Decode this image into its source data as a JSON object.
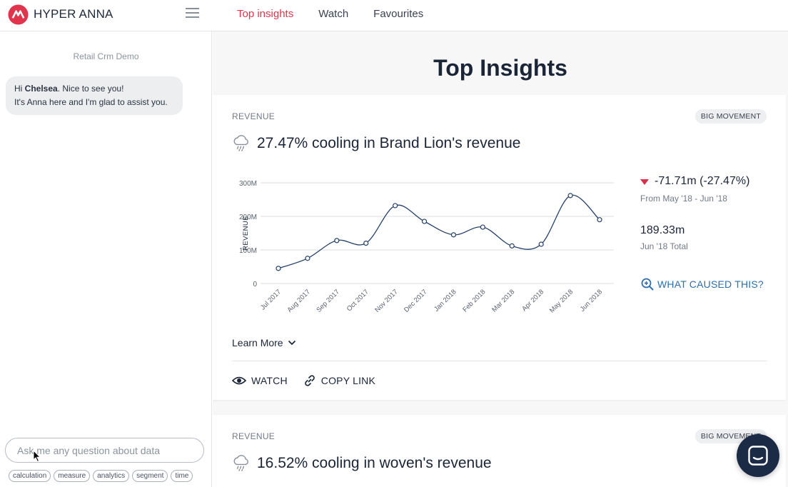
{
  "app": {
    "brand": "HYPER ANNA",
    "accent": "#e0334c",
    "navy": "#1b2538"
  },
  "nav": [
    {
      "label": "Top insights",
      "active": true
    },
    {
      "label": "Watch",
      "active": false
    },
    {
      "label": "Favourites",
      "active": false
    }
  ],
  "sidebar": {
    "dataset": "Retail Crm Demo",
    "greeting_prefix": "Hi ",
    "greeting_name": "Chelsea",
    "greeting_suffix": ". Nice to see you!",
    "greeting_line2": "It's Anna here and I'm glad to assist you.",
    "ask_placeholder": "Ask me any question about data",
    "chips": [
      "calculation",
      "measure",
      "analytics",
      "segment",
      "time"
    ]
  },
  "main": {
    "title": "Top Insights",
    "cards": [
      {
        "category": "REVENUE",
        "badge": "BIG MOVEMENT",
        "headline": "27.47% cooling in Brand Lion's revenue",
        "delta": "-71.71m (-27.47%)",
        "delta_period": "From May '18 - Jun '18",
        "total": "189.33m",
        "total_label": "Jun '18 Total",
        "what_caused": "WHAT CAUSED THIS?",
        "learn_more": "Learn More",
        "watch": "WATCH",
        "copy_link": "COPY LINK"
      },
      {
        "category": "REVENUE",
        "badge": "BIG MOVEMENT",
        "headline": "16.52% cooling in woven's revenue"
      }
    ]
  },
  "chart_data": {
    "type": "line",
    "categories": [
      "Jul 2017",
      "Aug 2017",
      "Sep 2017",
      "Oct 2017",
      "Nov 2017",
      "Dec 2017",
      "Jan 2018",
      "Feb 2018",
      "Mar 2018",
      "Apr 2018",
      "May 2018",
      "Jun 2018"
    ],
    "values": [
      45,
      75,
      128,
      120,
      232,
      185,
      145,
      168,
      112,
      117,
      262,
      190
    ],
    "ylabel": "REVENUE",
    "yticks": [
      0,
      100,
      200,
      300
    ],
    "ytick_labels": [
      "0",
      "100M",
      "200M",
      "300M"
    ],
    "ylim": [
      0,
      300
    ],
    "grid": true,
    "line_color": "#24406a"
  }
}
